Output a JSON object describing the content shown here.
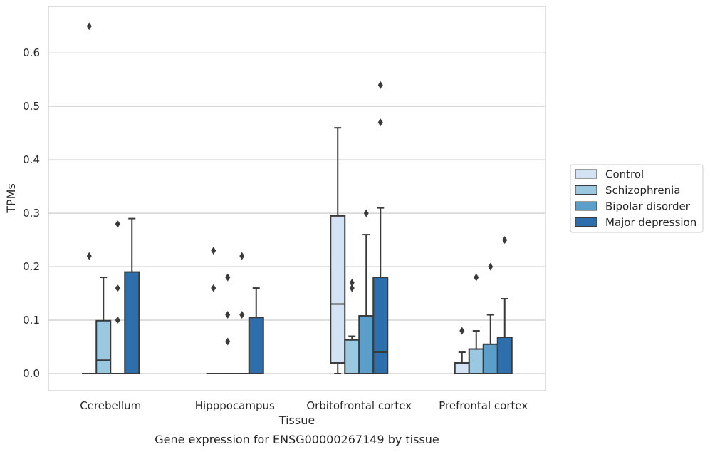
{
  "chart_data": {
    "type": "boxplot",
    "xlabel": "Tissue",
    "ylabel": "TPMs",
    "caption": "Gene expression for ENSG00000267149 by tissue",
    "ylim": [
      -0.032,
      0.687
    ],
    "yticks": [
      "0.0",
      "0.1",
      "0.2",
      "0.3",
      "0.4",
      "0.5",
      "0.6"
    ],
    "ytick_values": [
      0.0,
      0.1,
      0.2,
      0.3,
      0.4,
      0.5,
      0.6
    ],
    "grid": "horizontal",
    "legend_position": "right",
    "categories": [
      "Cerebellum",
      "Hipppocampus",
      "Orbitofrontal cortex",
      "Prefrontal cortex"
    ],
    "series": [
      {
        "name": "Control",
        "color": "#d3e3f3",
        "boxes": [
          {
            "q1": 0.0,
            "median": 0.0,
            "q3": 0.0,
            "whislo": 0.0,
            "whishi": 0.0,
            "fliers": [
              0.22,
              0.65
            ]
          },
          {
            "q1": 0.0,
            "median": 0.0,
            "q3": 0.0,
            "whislo": 0.0,
            "whishi": 0.0,
            "fliers": [
              0.16,
              0.23
            ]
          },
          {
            "q1": 0.02,
            "median": 0.13,
            "q3": 0.295,
            "whislo": 0.0,
            "whishi": 0.46,
            "fliers": []
          },
          {
            "q1": 0.0,
            "median": 0.0,
            "q3": 0.02,
            "whislo": 0.0,
            "whishi": 0.04,
            "fliers": [
              0.08
            ]
          }
        ]
      },
      {
        "name": "Schizophrenia",
        "color": "#9ac8e0",
        "boxes": [
          {
            "q1": 0.0,
            "median": 0.025,
            "q3": 0.099,
            "whislo": 0.0,
            "whishi": 0.18,
            "fliers": []
          },
          {
            "q1": 0.0,
            "median": 0.0,
            "q3": 0.0,
            "whislo": 0.0,
            "whishi": 0.0,
            "fliers": [
              0.06,
              0.11,
              0.18
            ]
          },
          {
            "q1": 0.0,
            "median": 0.0,
            "q3": 0.063,
            "whislo": 0.0,
            "whishi": 0.07,
            "fliers": [
              0.16,
              0.17
            ]
          },
          {
            "q1": 0.0,
            "median": 0.0,
            "q3": 0.046,
            "whislo": 0.0,
            "whishi": 0.08,
            "fliers": [
              0.18
            ]
          }
        ]
      },
      {
        "name": "Bipolar disorder",
        "color": "#5a9ec9",
        "boxes": [
          {
            "q1": 0.0,
            "median": 0.0,
            "q3": 0.0,
            "whislo": 0.0,
            "whishi": 0.0,
            "fliers": [
              0.1,
              0.16,
              0.28
            ]
          },
          {
            "q1": 0.0,
            "median": 0.0,
            "q3": 0.0,
            "whislo": 0.0,
            "whishi": 0.0,
            "fliers": [
              0.11,
              0.22
            ]
          },
          {
            "q1": 0.0,
            "median": 0.0,
            "q3": 0.108,
            "whislo": 0.0,
            "whishi": 0.26,
            "fliers": [
              0.3
            ]
          },
          {
            "q1": 0.0,
            "median": 0.0,
            "q3": 0.055,
            "whislo": 0.0,
            "whishi": 0.11,
            "fliers": [
              0.2
            ]
          }
        ]
      },
      {
        "name": "Major depression",
        "color": "#2c6fac",
        "boxes": [
          {
            "q1": 0.0,
            "median": 0.0,
            "q3": 0.19,
            "whislo": 0.0,
            "whishi": 0.29,
            "fliers": []
          },
          {
            "q1": 0.0,
            "median": 0.0,
            "q3": 0.105,
            "whislo": 0.0,
            "whishi": 0.16,
            "fliers": []
          },
          {
            "q1": 0.0,
            "median": 0.04,
            "q3": 0.18,
            "whislo": 0.0,
            "whishi": 0.31,
            "fliers": [
              0.47,
              0.54
            ]
          },
          {
            "q1": 0.0,
            "median": 0.0,
            "q3": 0.068,
            "whislo": 0.0,
            "whishi": 0.14,
            "fliers": [
              0.25
            ]
          }
        ]
      }
    ]
  }
}
